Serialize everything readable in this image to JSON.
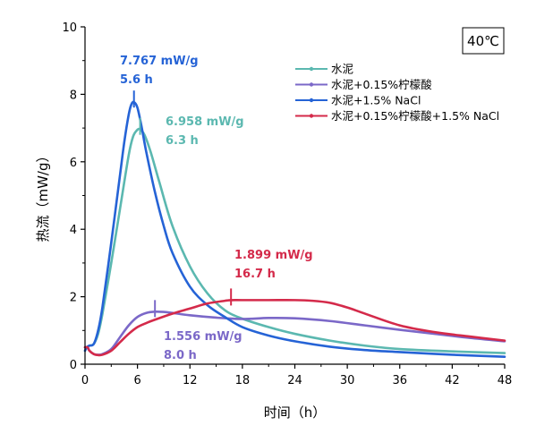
{
  "chart_data": {
    "type": "line",
    "title": "",
    "xlabel": "时间（h）",
    "ylabel": "热流（mW/g）",
    "xlim": [
      0,
      48
    ],
    "ylim": [
      0,
      10
    ],
    "xticks": [
      "0",
      "6",
      "12",
      "18",
      "24",
      "30",
      "36",
      "42",
      "48"
    ],
    "yticks": [
      "0",
      "2",
      "4",
      "6",
      "8",
      "10"
    ],
    "grid": false,
    "legend_position": "top-right",
    "temperature_label": "40℃",
    "series": [
      {
        "name": "水泥",
        "color": "#5bb8b0",
        "x": [
          0,
          0.2,
          0.5,
          1,
          1.5,
          2,
          3,
          4,
          5,
          5.5,
          6,
          6.3,
          6.8,
          7.5,
          8.5,
          10,
          12,
          14,
          16,
          18,
          21,
          24,
          28,
          32,
          36,
          42,
          48
        ],
        "y": [
          0.4,
          0.5,
          0.55,
          0.6,
          0.9,
          1.5,
          3.0,
          4.6,
          6.2,
          6.75,
          6.95,
          6.958,
          6.8,
          6.3,
          5.4,
          4.1,
          2.9,
          2.1,
          1.6,
          1.35,
          1.1,
          0.9,
          0.7,
          0.55,
          0.45,
          0.38,
          0.33
        ]
      },
      {
        "name": "水泥+0.15%柠檬酸",
        "color": "#7b68c8",
        "x": [
          0,
          0.3,
          0.5,
          1,
          1.5,
          2,
          3,
          4,
          5,
          6,
          7,
          8,
          9,
          10,
          12,
          15,
          18,
          21,
          24,
          28,
          32,
          36,
          40,
          44,
          48
        ],
        "y": [
          0.5,
          0.5,
          0.4,
          0.3,
          0.28,
          0.3,
          0.45,
          0.8,
          1.15,
          1.4,
          1.52,
          1.556,
          1.55,
          1.52,
          1.45,
          1.38,
          1.34,
          1.37,
          1.36,
          1.28,
          1.15,
          1.02,
          0.9,
          0.78,
          0.68
        ]
      },
      {
        "name": "水泥+1.5% NaCl",
        "color": "#2563d6",
        "x": [
          0,
          0.2,
          0.5,
          1,
          1.5,
          2,
          3,
          4,
          4.5,
          5,
          5.3,
          5.6,
          6,
          6.5,
          7,
          8,
          9,
          10,
          12,
          14,
          16,
          18,
          21,
          24,
          28,
          32,
          36,
          42,
          48
        ],
        "y": [
          0.4,
          0.5,
          0.55,
          0.6,
          1.0,
          1.7,
          3.6,
          5.6,
          6.6,
          7.4,
          7.7,
          7.767,
          7.6,
          7.0,
          6.3,
          5.1,
          4.1,
          3.3,
          2.3,
          1.75,
          1.4,
          1.1,
          0.85,
          0.68,
          0.52,
          0.42,
          0.36,
          0.28,
          0.22
        ]
      },
      {
        "name": "水泥+0.15%柠檬酸+1.5% NaCl",
        "color": "#d42a4a",
        "x": [
          0,
          0.3,
          0.5,
          1,
          1.5,
          2,
          3,
          4,
          5,
          6,
          7,
          8,
          10,
          12,
          14,
          16,
          16.7,
          18,
          21,
          24,
          26,
          28,
          30,
          32,
          36,
          40,
          44,
          48
        ],
        "y": [
          0.5,
          0.5,
          0.4,
          0.3,
          0.27,
          0.28,
          0.4,
          0.65,
          0.9,
          1.1,
          1.22,
          1.32,
          1.5,
          1.65,
          1.8,
          1.88,
          1.899,
          1.9,
          1.9,
          1.9,
          1.88,
          1.82,
          1.68,
          1.5,
          1.15,
          0.95,
          0.82,
          0.7
        ]
      }
    ],
    "annotations": [
      {
        "series": 2,
        "x": 5.6,
        "y": 7.767,
        "value": "7.767 mW/g",
        "time": "5.6 h"
      },
      {
        "series": 0,
        "x": 6.3,
        "y": 6.958,
        "value": "6.958 mW/g",
        "time": "6.3 h"
      },
      {
        "series": 3,
        "x": 16.7,
        "y": 1.899,
        "value": "1.899 mW/g",
        "time": "16.7 h"
      },
      {
        "series": 1,
        "x": 8.0,
        "y": 1.556,
        "value": "1.556 mW/g",
        "time": "8.0 h"
      }
    ]
  }
}
